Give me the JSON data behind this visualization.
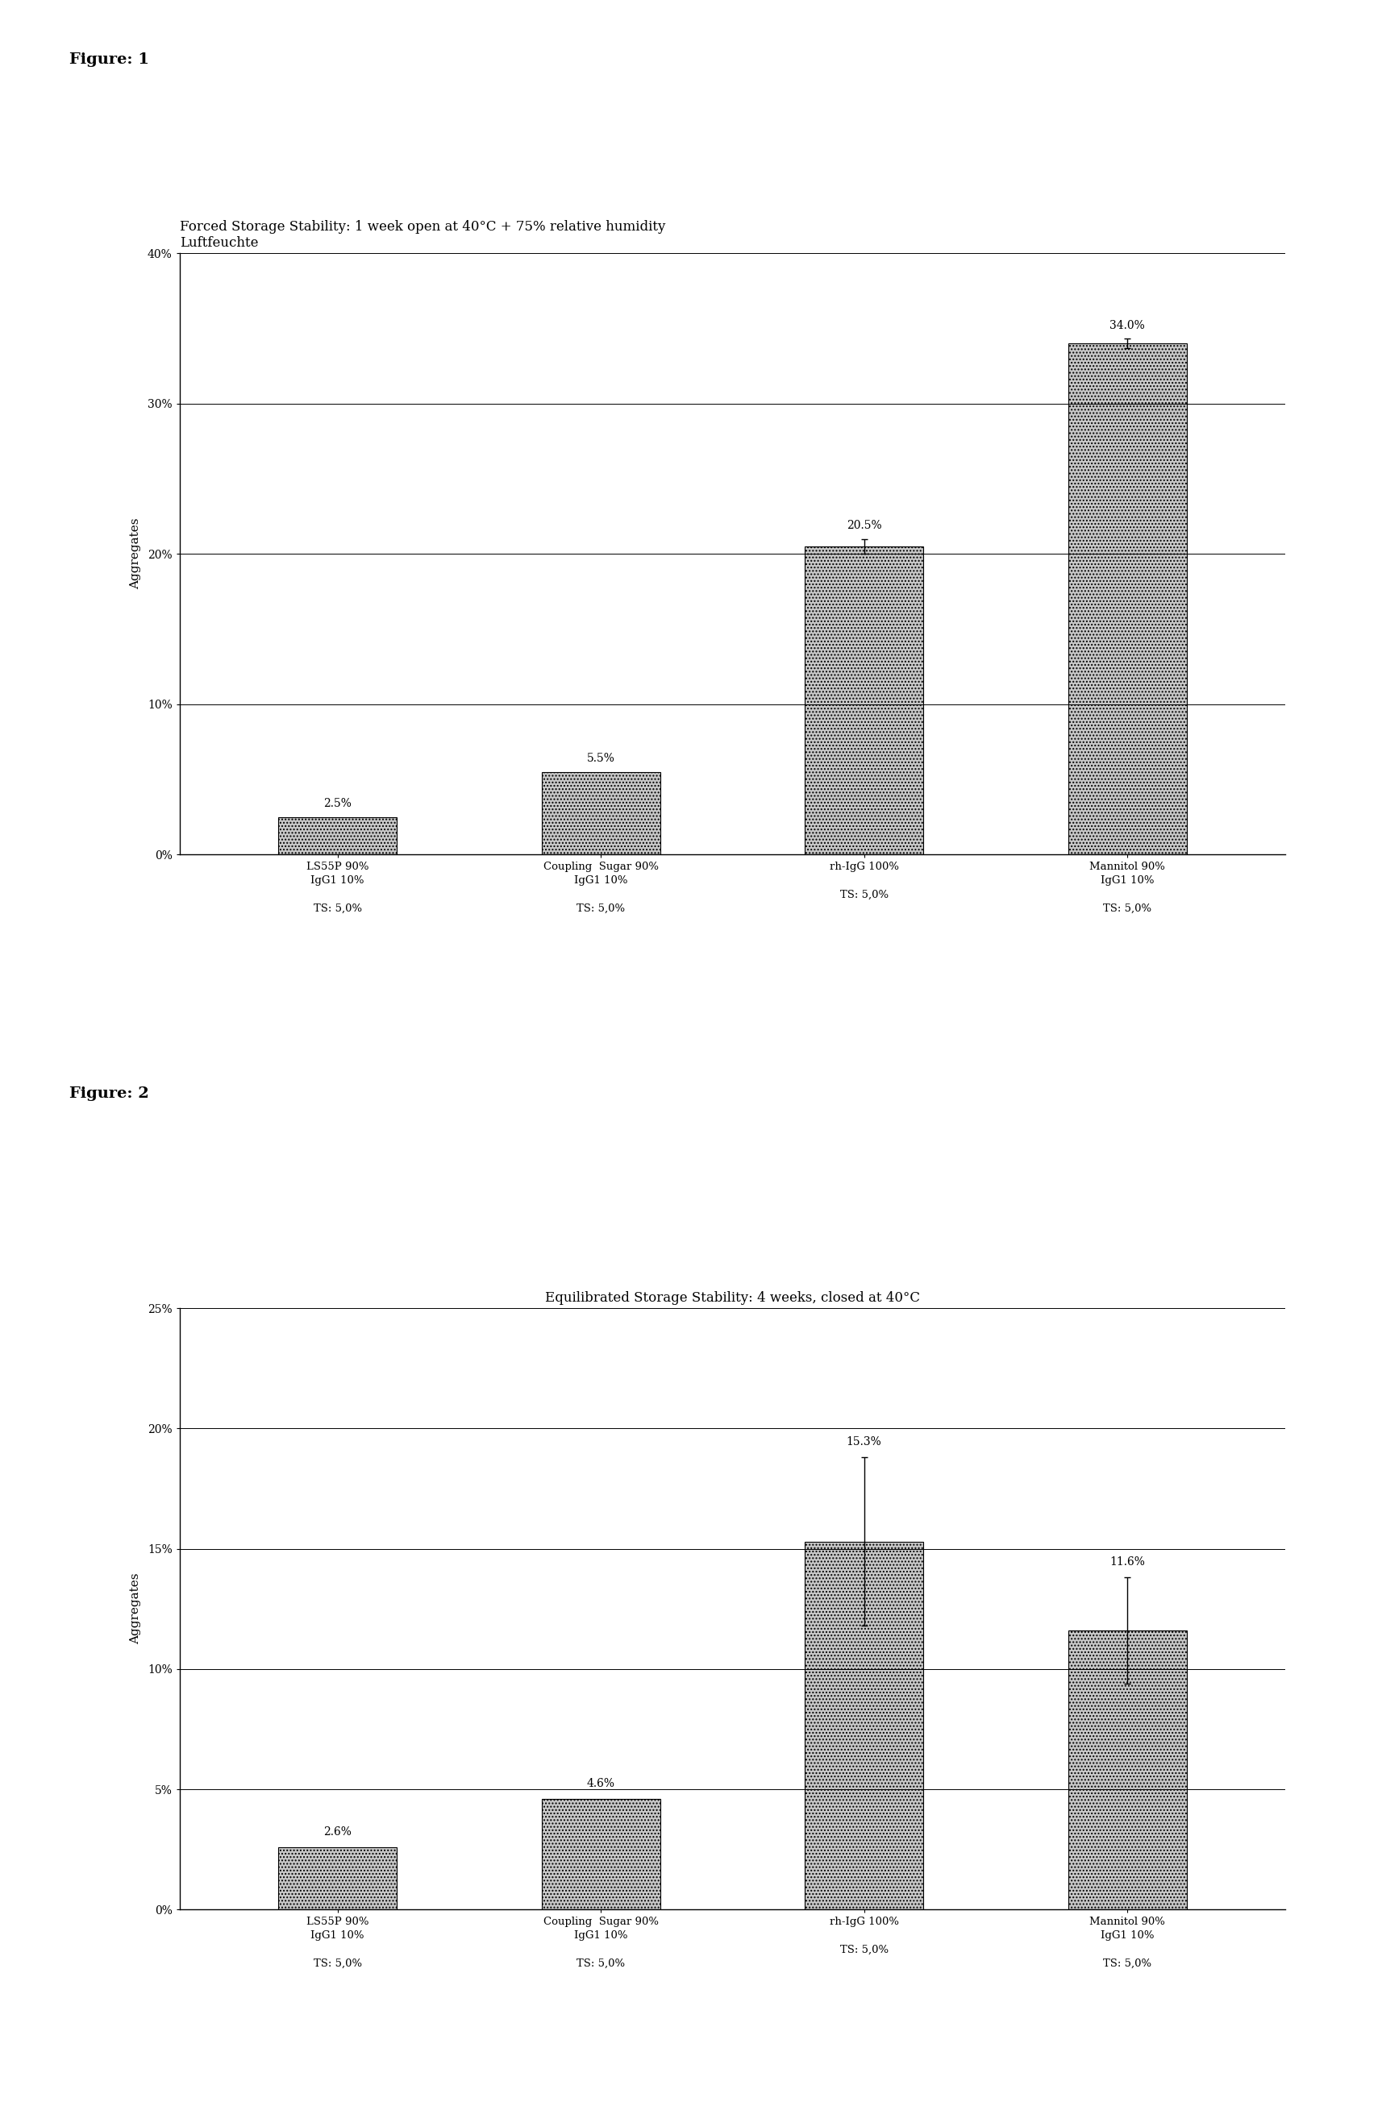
{
  "fig1": {
    "title_line1": "Forced Storage Stability: 1 week open at 40°C + 75% relative humidity",
    "title_line2": "Luftfeuchte",
    "ylabel": "Aggregates",
    "categories": [
      "LS55P 90%\nIgG1 10%\n\nTS: 5,0%",
      "Coupling  Sugar 90%\nIgG1 10%\n\nTS: 5,0%",
      "rh-IgG 100%\n\nTS: 5,0%",
      "Mannitol 90%\nIgG1 10%\n\nTS: 5,0%"
    ],
    "values": [
      0.025,
      0.055,
      0.205,
      0.34
    ],
    "errors": [
      0.0,
      0.0,
      0.005,
      0.003
    ],
    "value_labels": [
      "2.5%",
      "5.5%",
      "20.5%",
      "34.0%"
    ],
    "ylim": [
      0,
      0.4
    ],
    "yticks": [
      0.0,
      0.1,
      0.2,
      0.3,
      0.4
    ],
    "ytick_labels": [
      "0%",
      "10%",
      "20%",
      "30%",
      "40%"
    ]
  },
  "fig2": {
    "title": "Equilibrated Storage Stability: 4 weeks, closed at 40°C",
    "ylabel": "Aggregates",
    "categories": [
      "LS55P 90%\nIgG1 10%\n\nTS: 5,0%",
      "Coupling  Sugar 90%\nIgG1 10%\n\nTS: 5,0%",
      "rh-IgG 100%\n\nTS: 5,0%",
      "Mannitol 90%\nIgG1 10%\n\nTS: 5,0%"
    ],
    "values": [
      0.026,
      0.046,
      0.153,
      0.116
    ],
    "errors": [
      0.0,
      0.0,
      0.035,
      0.022
    ],
    "value_labels": [
      "2.6%",
      "4.6%",
      "15.3%",
      "11.6%"
    ],
    "ylim": [
      0,
      0.25
    ],
    "yticks": [
      0.0,
      0.05,
      0.1,
      0.15,
      0.2,
      0.25
    ],
    "ytick_labels": [
      "0%",
      "5%",
      "10%",
      "15%",
      "20%",
      "25%"
    ]
  },
  "bar_color": "#c8c8c8",
  "bar_hatch": "....",
  "figure_label1": "Figure: 1",
  "figure_label2": "Figure: 2",
  "bg_color": "#ffffff",
  "font_size_title": 12,
  "font_size_axis": 11,
  "font_size_ticks": 10,
  "font_size_label": 10,
  "font_size_fig_label": 14
}
